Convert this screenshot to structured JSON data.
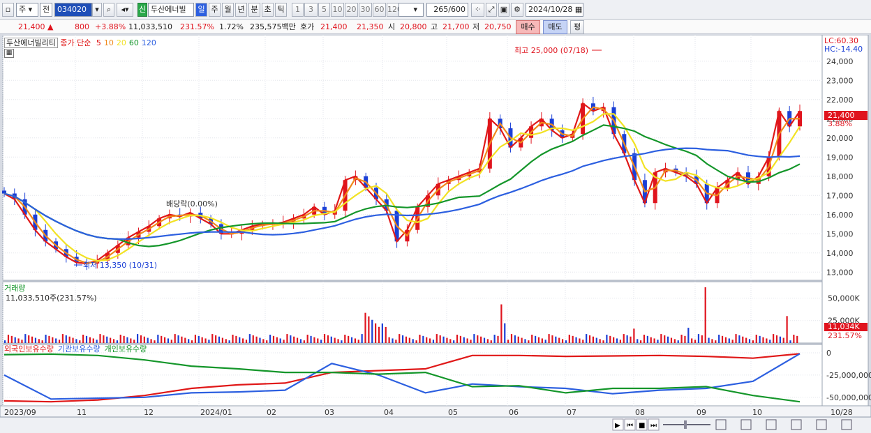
{
  "toolbar": {
    "market_sel": "주",
    "prev_sel": "전",
    "code": "034020",
    "name": "두산에너빌",
    "new_badge": "신",
    "periods": [
      "일",
      "주",
      "월",
      "년",
      "분",
      "초",
      "틱"
    ],
    "active_period": "일",
    "nums": [
      "1",
      "3",
      "5",
      "10",
      "20",
      "30",
      "60",
      "120"
    ],
    "count": "265",
    "count_total": "/600",
    "date": "2024/10/28"
  },
  "quote": {
    "price": "21,400",
    "arrow": "▲",
    "change": "800",
    "rate": "+3.88%",
    "volume": "11,033,510",
    "vol_rate": "231.57%",
    "turnover_rate": "1.72%",
    "amount": "235,575백만",
    "bid_label": "호가",
    "bid1": "21,400",
    "bid2": "21,350",
    "open_label": "시",
    "open": "20,800",
    "high_label": "고",
    "high": "21,700",
    "low_label": "저",
    "low": "20,750",
    "buy": "매수",
    "sell": "매도",
    "eval": "평"
  },
  "price_panel": {
    "name": "두산에너빌리티",
    "ma_title": "종가 단순",
    "ma": [
      {
        "p": "5",
        "color": "#e01818"
      },
      {
        "p": "10",
        "color": "#f08a1c"
      },
      {
        "p": "20",
        "color": "#f2e224"
      },
      {
        "p": "60",
        "color": "#14962a"
      },
      {
        "p": "120",
        "color": "#2c5fe0"
      }
    ],
    "lc": "LC:60.30",
    "hc": "HC:-14.40",
    "high_note": "최고 25,000 (07/18)",
    "low_note": "최저 13,350 (10/31)",
    "div_note": "배당락(0.00%)",
    "cur_price": "21,400",
    "cur_rate": "3.88%",
    "y_labels": [
      "24,000",
      "23,000",
      "22,000",
      "21,000",
      "20,000",
      "19,000",
      "18,000",
      "17,000",
      "16,000",
      "15,000",
      "14,000",
      "13,000"
    ]
  },
  "volume_panel": {
    "title": "거래량",
    "value": "11,033,510주(231.57%)",
    "y_labels": [
      "50,000K",
      "25,000K"
    ],
    "cur": "11,034K",
    "cur_rate": "231.57%"
  },
  "holdings_panel": {
    "titles": [
      "외국인보유수량",
      "기관보유수량",
      "개인보유수량"
    ],
    "colors": [
      "#e01818",
      "#2c5fe0",
      "#14962a"
    ],
    "y_labels": [
      "0",
      "-25,000,000",
      "-50,000,000"
    ]
  },
  "x_axis": [
    "2023/09",
    "11",
    "12",
    "2024/01",
    "02",
    "03",
    "04",
    "05",
    "06",
    "07",
    "08",
    "09",
    "10",
    "10/28"
  ],
  "chart_data": {
    "type": "candlestick",
    "ticker": "034020",
    "name": "두산에너빌리티",
    "period_range": [
      "2023/09",
      "2024/10/28"
    ],
    "y_range": [
      12500,
      25300
    ],
    "last_close": 21400,
    "high": {
      "value": 25000,
      "date": "07/18"
    },
    "low": {
      "value": 13350,
      "date": "10/31"
    },
    "close_approx": [
      17100,
      16800,
      16000,
      15200,
      14600,
      14200,
      13800,
      13500,
      13450,
      13600,
      14000,
      14400,
      14800,
      15100,
      15400,
      15800,
      16000,
      15900,
      16100,
      15800,
      15500,
      15000,
      15000,
      15200,
      15400,
      15500,
      15500,
      15600,
      15800,
      16000,
      16400,
      16000,
      16200,
      17800,
      18000,
      17400,
      16800,
      16200,
      14600,
      15200,
      16400,
      17000,
      17600,
      17800,
      18000,
      18200,
      18400,
      21000,
      20500,
      19500,
      20000,
      20600,
      21000,
      20400,
      20000,
      20200,
      21800,
      21400,
      21600,
      20200,
      19200,
      17800,
      16600,
      18200,
      18400,
      18200,
      18000,
      17600,
      16600,
      17400,
      17800,
      18200,
      17600,
      18000,
      19000,
      21400,
      20600,
      21400
    ]
  },
  "nav": {
    "icons": [
      "play-icon",
      "first-icon",
      "stop-icon",
      "last-icon"
    ]
  }
}
